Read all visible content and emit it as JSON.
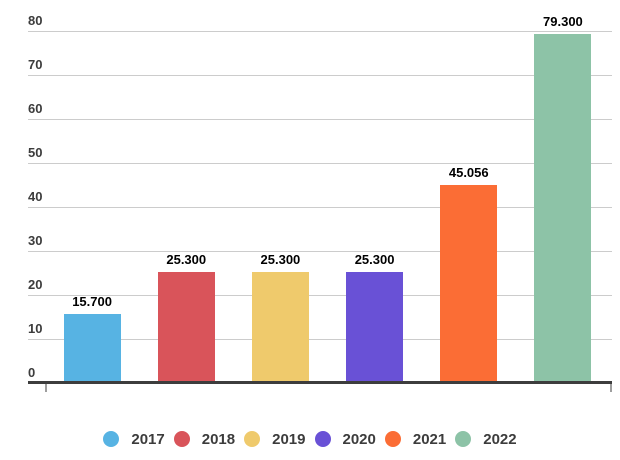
{
  "chart_data": {
    "type": "bar",
    "title": "",
    "xlabel": "",
    "ylabel": "",
    "categories": [
      "2017",
      "2018",
      "2019",
      "2020",
      "2021",
      "2022"
    ],
    "values": [
      15.7,
      25.3,
      25.3,
      25.3,
      45.056,
      79.3
    ],
    "bar_labels": [
      "15.700",
      "25.300",
      "25.300",
      "25.300",
      "45.056",
      "79.300"
    ],
    "colors": [
      "#57b3e3",
      "#d9545a",
      "#efca6c",
      "#6951d6",
      "#fb6d35",
      "#8dc3a7"
    ],
    "ylim": [
      0,
      80
    ],
    "yticks": [
      0,
      10,
      20,
      30,
      40,
      50,
      60,
      70,
      80
    ],
    "grid": true,
    "legend_position": "bottom"
  },
  "theme": {
    "background": "#ffffff",
    "grid_color": "#cccccc",
    "axis_color": "#3d3d3d",
    "axis_end_tick_color": "#9e9e9e",
    "tick_text_color": "#3c3c3c",
    "bar_label_color": "#000000",
    "legend_text_color": "#3c3c3c"
  }
}
